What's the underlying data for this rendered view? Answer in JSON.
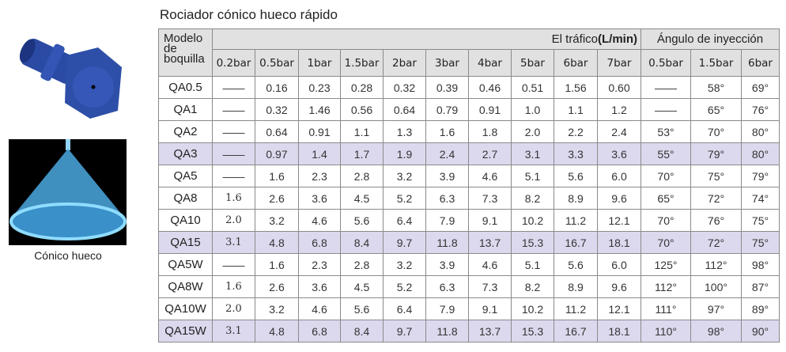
{
  "title": "Rociador cónico hueco rápido",
  "caption": "Cónico hueco",
  "colors": {
    "header_bg": "#e1e1e1",
    "highlight_row": "#dcd9ee",
    "spray": "#5ab8f0",
    "nozzle": "#2e4fa8"
  },
  "table": {
    "model_header": "Modelo de boquilla",
    "flow_header": "El tráfico",
    "flow_unit": "(L/min)",
    "angle_header": "Ángulo de inyección",
    "flow_pressures": [
      "0.2bar",
      "0.5bar",
      "1bar",
      "1.5bar",
      "2bar",
      "3bar",
      "4bar",
      "5bar",
      "6bar",
      "7bar"
    ],
    "angle_pressures": [
      "0.5bar",
      "1.5bar",
      "6bar"
    ],
    "rows": [
      {
        "model": "QA0.5",
        "highlight": false,
        "flow": [
          "——",
          "0.16",
          "0.23",
          "0.28",
          "0.32",
          "0.39",
          "0.46",
          "0.51",
          "1.56",
          "0.60"
        ],
        "angle": [
          "——",
          "58°",
          "69°"
        ]
      },
      {
        "model": "QA1",
        "highlight": false,
        "flow": [
          "——",
          "0.32",
          "1.46",
          "0.56",
          "0.64",
          "0.79",
          "0.91",
          "1.0",
          "1.1",
          "1.2"
        ],
        "angle": [
          "——",
          "65°",
          "76°"
        ]
      },
      {
        "model": "QA2",
        "highlight": false,
        "flow": [
          "——",
          "0.64",
          "0.91",
          "1.1",
          "1.3",
          "1.6",
          "1.8",
          "2.0",
          "2.2",
          "2.4"
        ],
        "angle": [
          "53°",
          "70°",
          "80°"
        ]
      },
      {
        "model": "QA3",
        "highlight": true,
        "flow": [
          "——",
          "0.97",
          "1.4",
          "1.7",
          "1.9",
          "2.4",
          "2.7",
          "3.1",
          "3.3",
          "3.6"
        ],
        "angle": [
          "55°",
          "79°",
          "80°"
        ]
      },
      {
        "model": "QA5",
        "highlight": false,
        "flow": [
          "——",
          "1.6",
          "2.3",
          "2.8",
          "3.2",
          "3.9",
          "4.6",
          "5.1",
          "5.6",
          "6.0"
        ],
        "angle": [
          "70°",
          "75°",
          "79°"
        ]
      },
      {
        "model": "QA8",
        "highlight": false,
        "flow": [
          "1.6",
          "2.6",
          "3.6",
          "4.5",
          "5.2",
          "6.3",
          "7.3",
          "8.2",
          "8.9",
          "9.6"
        ],
        "angle": [
          "65°",
          "72°",
          "74°"
        ]
      },
      {
        "model": "QA10",
        "highlight": false,
        "flow": [
          "2.0",
          "3.2",
          "4.6",
          "5.6",
          "6.4",
          "7.9",
          "9.1",
          "10.2",
          "11.2",
          "12.1"
        ],
        "angle": [
          "70°",
          "76°",
          "75°"
        ]
      },
      {
        "model": "QA15",
        "highlight": true,
        "flow": [
          "3.1",
          "4.8",
          "6.8",
          "8.4",
          "9.7",
          "11.8",
          "13.7",
          "15.3",
          "16.7",
          "18.1"
        ],
        "angle": [
          "70°",
          "72°",
          "75°"
        ]
      },
      {
        "model": "QA5W",
        "highlight": false,
        "flow": [
          "——",
          "1.6",
          "2.3",
          "2.8",
          "3.2",
          "3.9",
          "4.6",
          "5.1",
          "5.6",
          "6.0"
        ],
        "angle": [
          "125°",
          "112°",
          "98°"
        ]
      },
      {
        "model": "QA8W",
        "highlight": false,
        "flow": [
          "1.6",
          "2.6",
          "3.6",
          "4.5",
          "5.2",
          "6.3",
          "7.3",
          "8.2",
          "8.9",
          "9.6"
        ],
        "angle": [
          "112°",
          "100°",
          "87°"
        ]
      },
      {
        "model": "QA10W",
        "highlight": false,
        "flow": [
          "2.0",
          "3.2",
          "4.6",
          "5.6",
          "6.4",
          "7.9",
          "9.1",
          "10.2",
          "11.2",
          "12.1"
        ],
        "angle": [
          "111°",
          "97°",
          "89°"
        ]
      },
      {
        "model": "QA15W",
        "highlight": true,
        "flow": [
          "3.1",
          "4.8",
          "6.8",
          "8.4",
          "9.7",
          "11.8",
          "13.7",
          "15.3",
          "16.7",
          "18.1"
        ],
        "angle": [
          "110°",
          "98°",
          "90°"
        ]
      }
    ]
  }
}
